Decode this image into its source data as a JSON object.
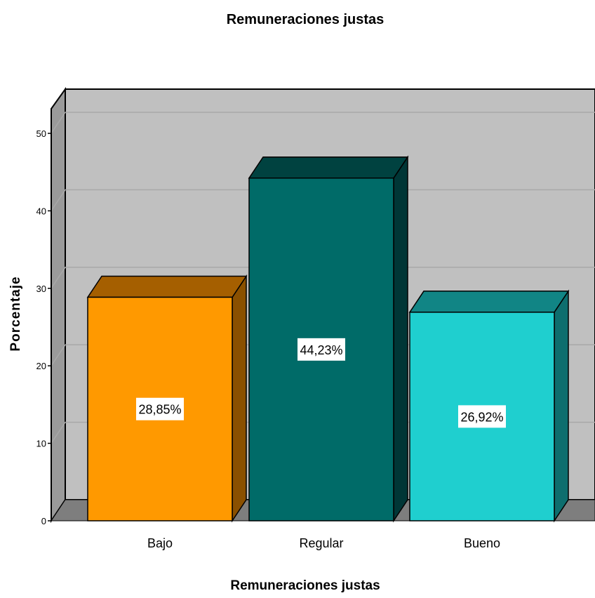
{
  "chart_data": {
    "type": "bar",
    "title": "Remuneraciones justas",
    "xlabel": "Remuneraciones justas",
    "ylabel": "Porcentaje",
    "categories": [
      "Bajo",
      "Regular",
      "Bueno"
    ],
    "values": [
      28.85,
      44.23,
      26.92
    ],
    "data_labels": [
      "28,85%",
      "44,23%",
      "26,92%"
    ],
    "ylim": [
      0,
      50
    ],
    "yticks": [
      "0",
      "10",
      "20",
      "30",
      "40",
      "50"
    ],
    "grid": true,
    "style": "3d",
    "colors": {
      "bars": [
        "#FF9900",
        "#006B68",
        "#1FCFCF"
      ],
      "bars_top": [
        "#A55F00",
        "#004240",
        "#118585"
      ],
      "bars_side": [
        "#8A5000",
        "#003636",
        "#0E6E6E"
      ],
      "plot_wall": "#C0C0C0",
      "plot_floor": "#7E7E7E",
      "side_wall": "#9A9A9A",
      "gridline": "#A8A8A8"
    }
  }
}
